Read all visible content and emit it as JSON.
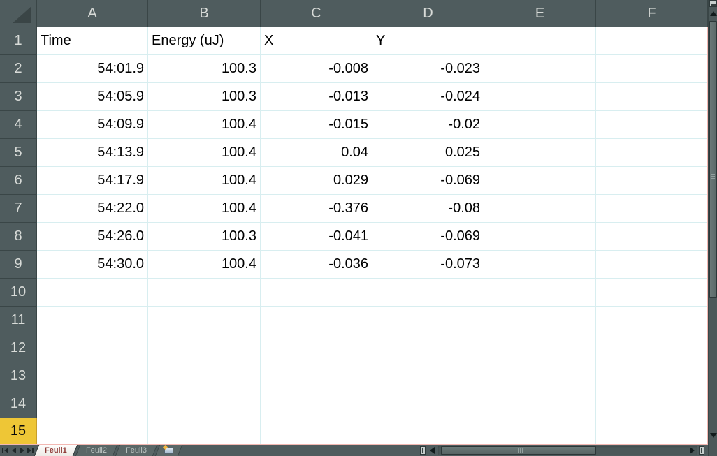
{
  "sheet": {
    "columns": [
      "A",
      "B",
      "C",
      "D",
      "E",
      "F"
    ],
    "row_numbers": [
      "1",
      "2",
      "3",
      "4",
      "5",
      "6",
      "7",
      "8",
      "9",
      "10",
      "11",
      "12",
      "13",
      "14",
      "15"
    ],
    "active_row_number": "15",
    "header_row": {
      "time": "Time",
      "energy": "Energy (uJ)",
      "x": "X",
      "y": "Y"
    },
    "data_rows": [
      {
        "time": "54:01.9",
        "energy": "100.3",
        "x": "-0.008",
        "y": "-0.023"
      },
      {
        "time": "54:05.9",
        "energy": "100.3",
        "x": "-0.013",
        "y": "-0.024"
      },
      {
        "time": "54:09.9",
        "energy": "100.4",
        "x": "-0.015",
        "y": "-0.02"
      },
      {
        "time": "54:13.9",
        "energy": "100.4",
        "x": "0.04",
        "y": "0.025"
      },
      {
        "time": "54:17.9",
        "energy": "100.4",
        "x": "0.029",
        "y": "-0.069"
      },
      {
        "time": "54:22.0",
        "energy": "100.4",
        "x": "-0.376",
        "y": "-0.08"
      },
      {
        "time": "54:26.0",
        "energy": "100.3",
        "x": "-0.041",
        "y": "-0.069"
      },
      {
        "time": "54:30.0",
        "energy": "100.4",
        "x": "-0.036",
        "y": "-0.073"
      }
    ]
  },
  "tab_bar": {
    "sheet_tabs": [
      {
        "label": "Feuil1",
        "active": true
      },
      {
        "label": "Feuil2",
        "active": false
      },
      {
        "label": "Feuil3",
        "active": false
      }
    ]
  },
  "colors": {
    "chrome": "#4F5C5E",
    "chrome_divider": "#3A4647",
    "header_text": "#D8DBD8",
    "active_row_highlight": "#EEC636",
    "gridline": "#D8EEF0",
    "sheet_edge_pink": "#F2B8B2",
    "active_tab_text": "#8E3A36",
    "cell_text": "#000000"
  }
}
